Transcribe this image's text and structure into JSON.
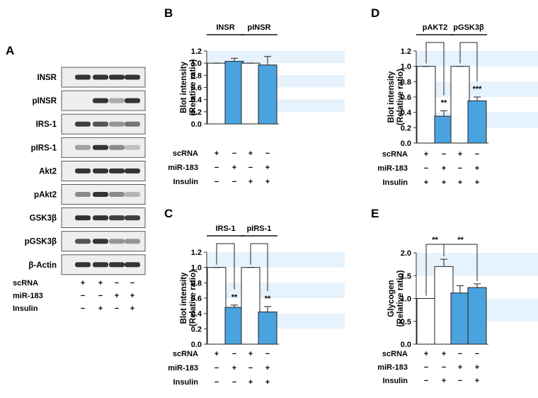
{
  "panel_letters": [
    "A",
    "B",
    "C",
    "D",
    "E"
  ],
  "colors": {
    "bar_white": "#ffffff",
    "bar_blue": "#4aa3df",
    "band": "#e6f2fc",
    "blot_band": "#1a1a1a",
    "blot_bg": "#eeeeee"
  },
  "western_blot": {
    "letter": "A",
    "rows": [
      {
        "label": "INSR",
        "intensity": [
          0.85,
          0.85,
          0.85,
          0.85
        ]
      },
      {
        "label": "pINSR",
        "intensity": [
          0.0,
          0.85,
          0.3,
          0.85
        ]
      },
      {
        "label": "IRS-1",
        "intensity": [
          0.8,
          0.7,
          0.4,
          0.55
        ]
      },
      {
        "label": "pIRS-1",
        "intensity": [
          0.35,
          0.85,
          0.45,
          0.2
        ]
      },
      {
        "label": "Akt2",
        "intensity": [
          0.85,
          0.85,
          0.85,
          0.85
        ]
      },
      {
        "label": "pAkt2",
        "intensity": [
          0.45,
          0.85,
          0.45,
          0.25
        ]
      },
      {
        "label": "GSK3β",
        "intensity": [
          0.85,
          0.85,
          0.8,
          0.8
        ]
      },
      {
        "label": "pGSK3β",
        "intensity": [
          0.7,
          0.85,
          0.4,
          0.4
        ]
      },
      {
        "label": "β-Actin",
        "intensity": [
          0.85,
          0.85,
          0.85,
          0.85
        ]
      }
    ],
    "conditions": [
      {
        "label": "scRNA",
        "signs": [
          "+",
          "+",
          "−",
          "−"
        ]
      },
      {
        "label": "miR-183",
        "signs": [
          "−",
          "−",
          "+",
          "+"
        ]
      },
      {
        "label": "Insulin",
        "signs": [
          "−",
          "+",
          "−",
          "+"
        ]
      }
    ]
  },
  "chart_data": [
    {
      "letter": "B",
      "type": "bar",
      "ylabel": "Blot intensity\n(Relative ratio)",
      "ylim": [
        0,
        1.2
      ],
      "yticks": [
        "0.0",
        "0.2",
        "0.4",
        "0.6",
        "0.8",
        "1.0",
        "1.2"
      ],
      "groups": [
        "INSR",
        "pINSR"
      ],
      "values": [
        1.0,
        1.03,
        1.0,
        0.97
      ],
      "errors": [
        0.0,
        0.05,
        0.0,
        0.14
      ],
      "fills": [
        "white",
        "blue",
        "white",
        "blue"
      ],
      "significance": [],
      "conditions": [
        {
          "label": "scRNA",
          "signs": [
            "+",
            "−",
            "+",
            "−"
          ]
        },
        {
          "label": "miR-183",
          "signs": [
            "−",
            "+",
            "−",
            "+"
          ]
        },
        {
          "label": "Insulin",
          "signs": [
            "−",
            "−",
            "+",
            "+"
          ]
        }
      ]
    },
    {
      "letter": "C",
      "type": "bar",
      "ylabel": "Blot intensity\n(Relative ratio)",
      "ylim": [
        0,
        1.2
      ],
      "yticks": [
        "0.0",
        "0.2",
        "0.4",
        "0.6",
        "0.8",
        "1.0",
        "1.2"
      ],
      "groups": [
        "IRS-1",
        "pIRS-1"
      ],
      "values": [
        1.0,
        0.48,
        1.0,
        0.42
      ],
      "errors": [
        0.0,
        0.03,
        0.0,
        0.07
      ],
      "fills": [
        "white",
        "blue",
        "white",
        "blue"
      ],
      "significance": [
        {
          "from": 0,
          "to": 1,
          "label": "**"
        },
        {
          "from": 2,
          "to": 3,
          "label": "**"
        }
      ],
      "conditions": [
        {
          "label": "scRNA",
          "signs": [
            "+",
            "−",
            "+",
            "−"
          ]
        },
        {
          "label": "miR-183",
          "signs": [
            "−",
            "+",
            "−",
            "+"
          ]
        },
        {
          "label": "Insulin",
          "signs": [
            "−",
            "−",
            "+",
            "+"
          ]
        }
      ]
    },
    {
      "letter": "D",
      "type": "bar",
      "ylabel": "Blot intensity\n(Relative ratio)",
      "ylim": [
        0,
        1.2
      ],
      "yticks": [
        "0.0",
        "0.2",
        "0.4",
        "0.6",
        "0.8",
        "1.0",
        "1.2"
      ],
      "groups": [
        "pAKT2",
        "pGSK3β"
      ],
      "values": [
        1.0,
        0.35,
        1.0,
        0.55
      ],
      "errors": [
        0.0,
        0.07,
        0.0,
        0.05
      ],
      "fills": [
        "white",
        "blue",
        "white",
        "blue"
      ],
      "significance": [
        {
          "from": 0,
          "to": 1,
          "label": "**"
        },
        {
          "from": 2,
          "to": 3,
          "label": "***"
        }
      ],
      "conditions": [
        {
          "label": "scRNA",
          "signs": [
            "+",
            "−",
            "+",
            "−"
          ]
        },
        {
          "label": "miR-183",
          "signs": [
            "−",
            "+",
            "−",
            "+"
          ]
        },
        {
          "label": "Insulin",
          "signs": [
            "+",
            "+",
            "+",
            "+"
          ]
        }
      ]
    },
    {
      "letter": "E",
      "type": "bar",
      "ylabel": "Glycogen\n(Relative ratio)",
      "ylim": [
        0,
        2.0
      ],
      "yticks": [
        "0.0",
        "0.5",
        "1.0",
        "1.5",
        "2.0"
      ],
      "groups": [],
      "values": [
        1.0,
        1.7,
        1.12,
        1.24
      ],
      "errors": [
        0.0,
        0.16,
        0.16,
        0.08
      ],
      "fills": [
        "white",
        "white",
        "blue",
        "blue"
      ],
      "significance": [
        {
          "from": 0,
          "to": 1,
          "label": "**"
        },
        {
          "from": 1,
          "to": 3,
          "label": "**"
        }
      ],
      "conditions": [
        {
          "label": "scRNA",
          "signs": [
            "+",
            "+",
            "−",
            "−"
          ]
        },
        {
          "label": "miR-183",
          "signs": [
            "−",
            "−",
            "+",
            "+"
          ]
        },
        {
          "label": "Insulin",
          "signs": [
            "−",
            "+",
            "−",
            "+"
          ]
        }
      ]
    }
  ]
}
